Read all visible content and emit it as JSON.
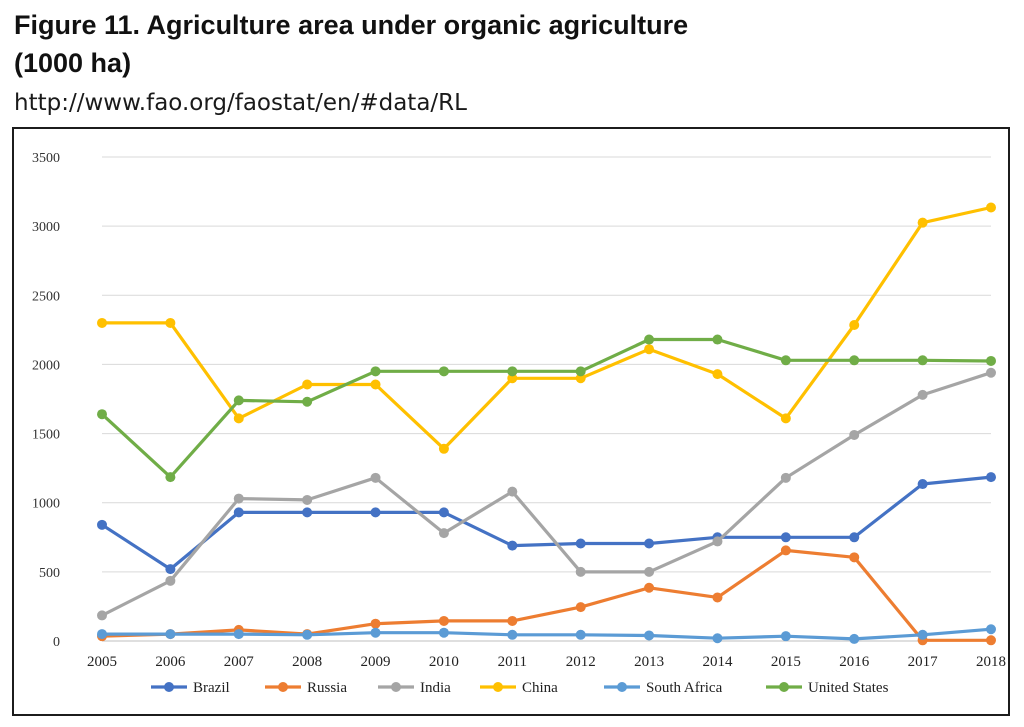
{
  "figure": {
    "title_line1": "Figure 11. Agriculture area under organic agriculture",
    "title_line2": "(1000 ha)",
    "source": "http://www.fao.org/faostat/en/#data/RL"
  },
  "chart_data": {
    "type": "line",
    "title": "",
    "xlabel": "",
    "ylabel": "",
    "ylim": [
      0,
      3500
    ],
    "yticks": [
      0,
      500,
      1000,
      1500,
      2000,
      2500,
      3000,
      3500
    ],
    "grid": true,
    "legend_position": "bottom",
    "x": [
      "2005",
      "2006",
      "2007",
      "2008",
      "2009",
      "2010",
      "2011",
      "2012",
      "2013",
      "2014",
      "2015",
      "2016",
      "2017",
      "2018"
    ],
    "series": [
      {
        "name": "Brazil",
        "color": "#4472c4",
        "values": [
          840,
          520,
          930,
          930,
          930,
          930,
          690,
          705,
          705,
          750,
          750,
          750,
          1135,
          1185
        ]
      },
      {
        "name": "Russia",
        "color": "#ed7d31",
        "values": [
          35,
          50,
          80,
          50,
          125,
          145,
          145,
          245,
          385,
          315,
          655,
          605,
          5,
          5
        ]
      },
      {
        "name": "India",
        "color": "#a5a5a5",
        "values": [
          185,
          435,
          1030,
          1020,
          1180,
          780,
          1080,
          500,
          500,
          720,
          1180,
          1490,
          1780,
          1940
        ]
      },
      {
        "name": "China",
        "color": "#ffc000",
        "values": [
          2300,
          2300,
          1610,
          1855,
          1855,
          1390,
          1900,
          1900,
          2110,
          1930,
          1610,
          2285,
          3025,
          3135
        ]
      },
      {
        "name": "South Africa",
        "color": "#5b9bd5",
        "values": [
          50,
          50,
          50,
          45,
          60,
          60,
          45,
          45,
          40,
          20,
          35,
          15,
          45,
          85
        ]
      },
      {
        "name": "United States",
        "color": "#70ad47",
        "values": [
          1640,
          1185,
          1740,
          1730,
          1950,
          1950,
          1950,
          1950,
          2180,
          2180,
          2030,
          2030,
          2030,
          2025
        ]
      }
    ]
  }
}
